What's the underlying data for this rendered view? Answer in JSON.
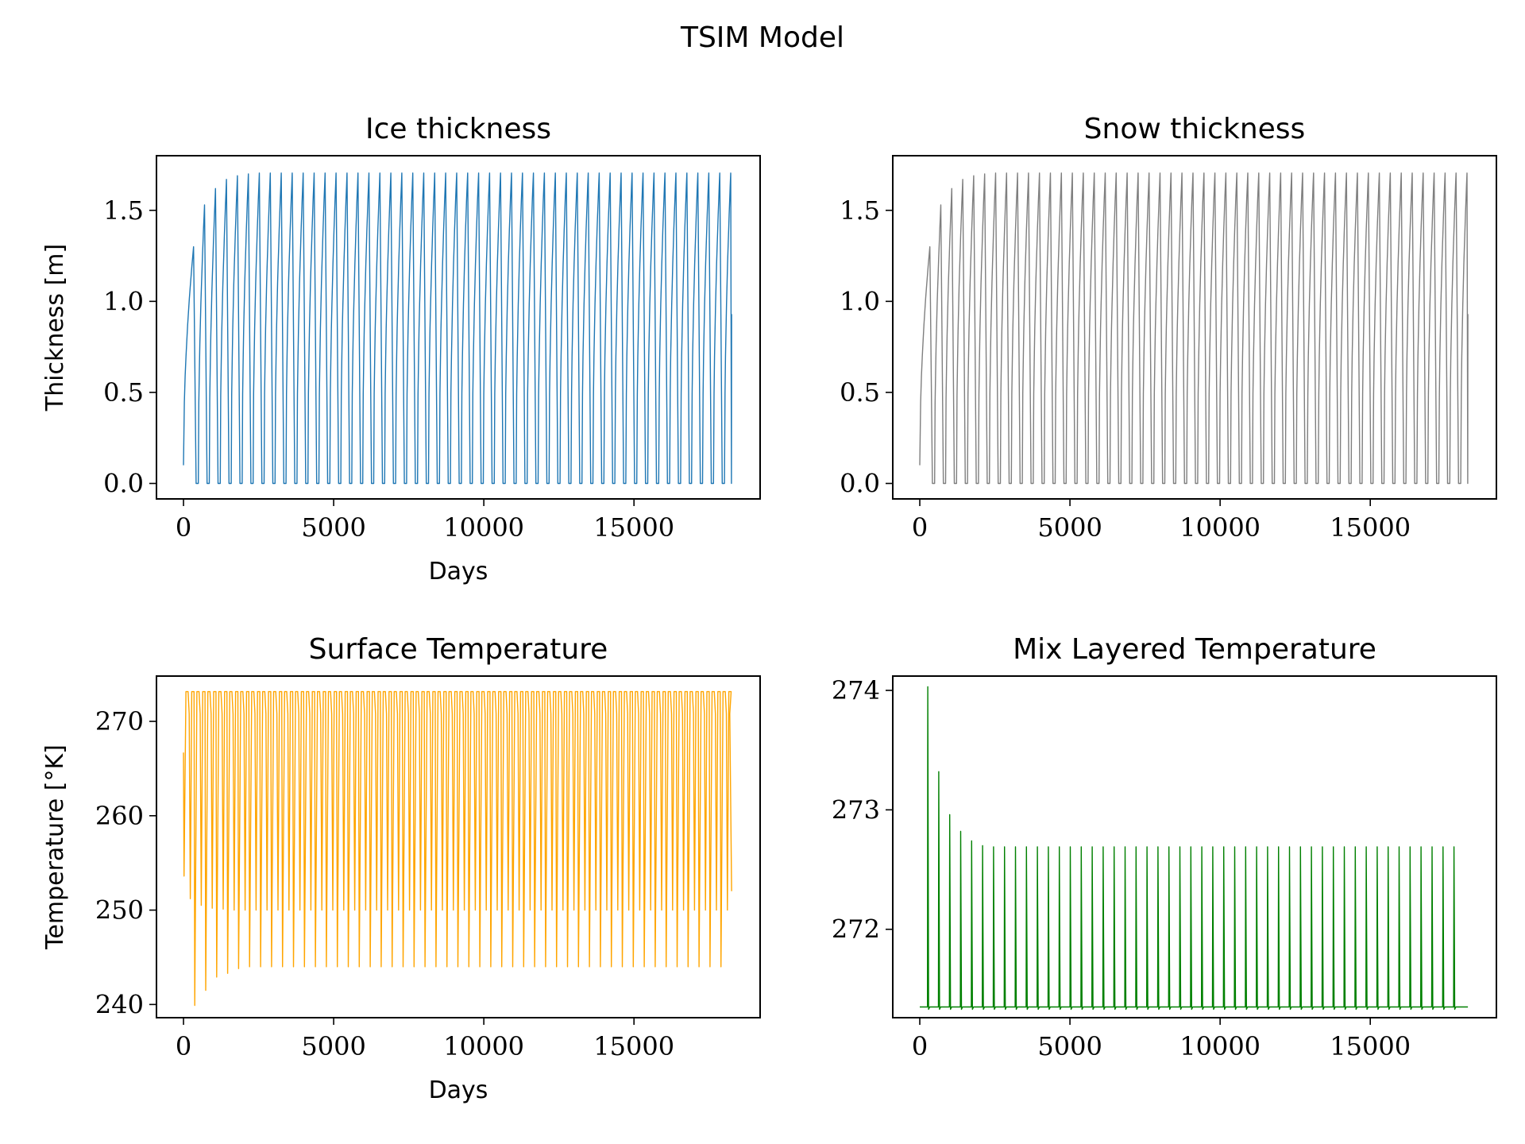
{
  "figure": {
    "suptitle": "TSIM Model"
  },
  "chart_data": [
    {
      "id": "ice",
      "type": "line",
      "title": "Ice thickness",
      "xlabel": "Days",
      "ylabel": "Thickness [m]",
      "xlim": [
        -900,
        19200
      ],
      "ylim": [
        -0.085,
        1.8
      ],
      "xticks": [
        0,
        5000,
        10000,
        15000
      ],
      "yticks": [
        0.0,
        0.5,
        1.0,
        1.5
      ],
      "ytick_labels": [
        "0.0",
        "0.5",
        "1.0",
        "1.5"
      ],
      "grid": false,
      "color": "#1f77b4",
      "series": [
        {
          "kind": "seasonal_thickness",
          "x_start": 0,
          "x_end": 18250,
          "period_days": 365,
          "start_value": 0.1,
          "min_value": 0.0,
          "end_value": 0.93,
          "cycle_peaks": [
            1.3,
            1.53,
            1.62,
            1.67,
            1.69,
            1.7,
            1.705,
            1.705,
            1.705,
            1.705,
            1.705,
            1.705,
            1.705,
            1.705,
            1.705,
            1.705,
            1.705,
            1.705,
            1.705,
            1.705,
            1.705,
            1.705,
            1.705,
            1.705,
            1.705,
            1.705,
            1.705,
            1.705,
            1.705,
            1.705,
            1.705,
            1.705,
            1.705,
            1.705,
            1.705,
            1.705,
            1.705,
            1.705,
            1.705,
            1.705,
            1.705,
            1.705,
            1.705,
            1.705,
            1.705,
            1.705,
            1.705,
            1.705,
            1.705,
            1.705
          ]
        }
      ]
    },
    {
      "id": "snow",
      "type": "line",
      "title": "Snow thickness",
      "xlabel": "",
      "ylabel": "",
      "xlim": [
        -900,
        19200
      ],
      "ylim": [
        -0.085,
        1.8
      ],
      "xticks": [
        0,
        5000,
        10000,
        15000
      ],
      "yticks": [
        0.0,
        0.5,
        1.0,
        1.5
      ],
      "ytick_labels": [
        "0.0",
        "0.5",
        "1.0",
        "1.5"
      ],
      "grid": false,
      "color": "#7f7f7f",
      "series": [
        {
          "kind": "seasonal_thickness",
          "x_start": 0,
          "x_end": 18250,
          "period_days": 365,
          "start_value": 0.1,
          "min_value": 0.0,
          "end_value": 0.93,
          "cycle_peaks": [
            1.3,
            1.53,
            1.62,
            1.67,
            1.69,
            1.7,
            1.705,
            1.705,
            1.705,
            1.705,
            1.705,
            1.705,
            1.705,
            1.705,
            1.705,
            1.705,
            1.705,
            1.705,
            1.705,
            1.705,
            1.705,
            1.705,
            1.705,
            1.705,
            1.705,
            1.705,
            1.705,
            1.705,
            1.705,
            1.705,
            1.705,
            1.705,
            1.705,
            1.705,
            1.705,
            1.705,
            1.705,
            1.705,
            1.705,
            1.705,
            1.705,
            1.705,
            1.705,
            1.705,
            1.705,
            1.705,
            1.705,
            1.705,
            1.705,
            1.705
          ]
        }
      ]
    },
    {
      "id": "surface",
      "type": "line",
      "title": "Surface Temperature",
      "xlabel": "Days",
      "ylabel": "Temperature [°K]",
      "xlim": [
        -900,
        19200
      ],
      "ylim": [
        238.6,
        274.8
      ],
      "xticks": [
        0,
        5000,
        10000,
        15000
      ],
      "yticks": [
        240,
        250,
        260,
        270
      ],
      "ytick_labels": [
        "240",
        "250",
        "260",
        "270"
      ],
      "grid": false,
      "color": "#ffa500",
      "series": [
        {
          "kind": "seasonal_surface_temp",
          "x_start": 0,
          "x_end": 18250,
          "period_days": 365,
          "start_value": 266.7,
          "end_value": 252.0,
          "max_value": 273.15,
          "summer_dip": 270.8,
          "cycle_mins": [
            253.6,
            239.9,
            241.5,
            242.9,
            243.3,
            243.8,
            244.0,
            244.0,
            244.0,
            244.0,
            244.0,
            244.0,
            244.0,
            244.0,
            244.0,
            244.0,
            244.0,
            244.0,
            244.0,
            244.0,
            244.0,
            244.0,
            244.0,
            244.0,
            244.0,
            244.0,
            244.0,
            244.0,
            244.0,
            244.0,
            244.0,
            244.0,
            244.0,
            244.0,
            244.0,
            244.0,
            244.0,
            244.0,
            244.0,
            244.0,
            244.0,
            244.0,
            244.0,
            244.0,
            244.0,
            244.0,
            244.0,
            244.0,
            244.0,
            244.0
          ],
          "cycle_secondary": [
            251.2,
            250.5,
            250.2,
            250.1,
            250.0,
            250.0,
            250.0,
            250.0,
            250.0,
            250.0,
            250.0,
            250.0,
            250.0,
            250.0,
            250.0,
            250.0,
            250.0,
            250.0,
            250.0,
            250.0,
            250.0,
            250.0,
            250.0,
            250.0,
            250.0,
            250.0,
            250.0,
            250.0,
            250.0,
            250.0,
            250.0,
            250.0,
            250.0,
            250.0,
            250.0,
            250.0,
            250.0,
            250.0,
            250.0,
            250.0,
            250.0,
            250.0,
            250.0,
            250.0,
            250.0,
            250.0,
            250.0,
            250.0,
            250.0,
            250.0
          ]
        }
      ]
    },
    {
      "id": "mixed",
      "type": "line",
      "title": "Mix Layered Temperature",
      "xlabel": "",
      "ylabel": "",
      "xlim": [
        -900,
        19200
      ],
      "ylim": [
        271.26,
        274.12
      ],
      "xticks": [
        0,
        5000,
        10000,
        15000
      ],
      "yticks": [
        272,
        273,
        274
      ],
      "ytick_labels": [
        "272",
        "273",
        "274"
      ],
      "grid": false,
      "color": "#008000",
      "series": [
        {
          "kind": "mixed_layer_spikes",
          "x_start": 0,
          "x_end": 18250,
          "period_days": 365,
          "base_value": 271.35,
          "dip_value": 271.33,
          "cycle_peaks": [
            274.03,
            273.32,
            272.96,
            272.82,
            272.74,
            272.7,
            272.69,
            272.69,
            272.69,
            272.69,
            272.69,
            272.69,
            272.69,
            272.69,
            272.69,
            272.69,
            272.69,
            272.69,
            272.69,
            272.69,
            272.69,
            272.69,
            272.69,
            272.69,
            272.69,
            272.69,
            272.69,
            272.69,
            272.69,
            272.69,
            272.69,
            272.69,
            272.69,
            272.69,
            272.69,
            272.69,
            272.69,
            272.69,
            272.69,
            272.69,
            272.69,
            272.69,
            272.69,
            272.69,
            272.69,
            272.69,
            272.69,
            272.69,
            272.69
          ]
        }
      ]
    }
  ]
}
